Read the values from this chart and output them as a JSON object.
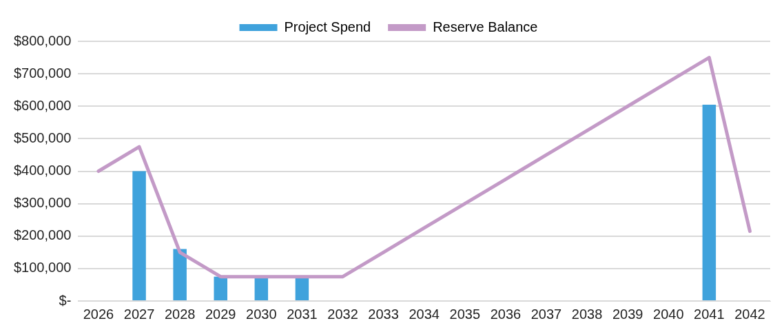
{
  "chart_data": {
    "type": "bar",
    "categories": [
      "2026",
      "2027",
      "2028",
      "2029",
      "2030",
      "2031",
      "2032",
      "2033",
      "2034",
      "2035",
      "2036",
      "2037",
      "2038",
      "2039",
      "2040",
      "2041",
      "2042"
    ],
    "series": [
      {
        "name": "Project Spend",
        "color": "#3fa2dc",
        "values": [
          null,
          400000,
          160000,
          75000,
          75000,
          75000,
          null,
          null,
          null,
          null,
          null,
          null,
          null,
          null,
          null,
          605000,
          null
        ]
      },
      {
        "name": "Reserve Balance",
        "type": "line",
        "color": "#c39ac7",
        "values": [
          400000,
          475000,
          150000,
          75000,
          75000,
          75000,
          75000,
          150000,
          225000,
          300000,
          375000,
          450000,
          525000,
          600000,
          675000,
          750000,
          215000
        ]
      }
    ],
    "ylim": [
      0,
      800000
    ],
    "yticks": [
      {
        "value": 0,
        "label": "$-"
      },
      {
        "value": 100000,
        "label": "$100,000"
      },
      {
        "value": 200000,
        "label": "$200,000"
      },
      {
        "value": 300000,
        "label": "$300,000"
      },
      {
        "value": 400000,
        "label": "$400,000"
      },
      {
        "value": 500000,
        "label": "$500,000"
      },
      {
        "value": 600000,
        "label": "$600,000"
      },
      {
        "value": 700000,
        "label": "$700,000"
      },
      {
        "value": 800000,
        "label": "$800,000"
      }
    ],
    "grid": "y",
    "legend": "top",
    "marker": "none"
  }
}
